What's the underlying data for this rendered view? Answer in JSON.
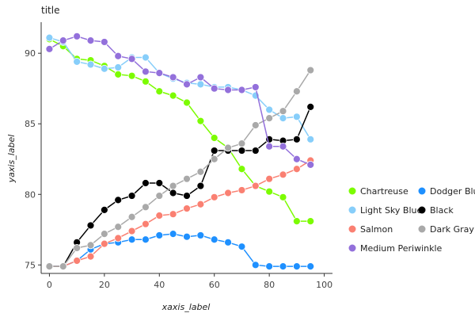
{
  "chart_data": {
    "type": "line",
    "title": "title",
    "xlabel": "xaxis_label",
    "ylabel": "yaxis_label",
    "xlim": [
      -3,
      103
    ],
    "ylim": [
      74.4,
      92.2
    ],
    "xticks": [
      0,
      20,
      40,
      60,
      80,
      100
    ],
    "yticks": [
      75,
      80,
      85,
      90
    ],
    "grid": false,
    "legend_position": "right",
    "series": [
      {
        "name": "Chartreuse",
        "color": "#7cfc00",
        "x": [
          0,
          5,
          10,
          15,
          20,
          25,
          30,
          35,
          40,
          45,
          50,
          55,
          60,
          65,
          70,
          75,
          80,
          85,
          90,
          95
        ],
        "y": [
          91.0,
          90.5,
          89.6,
          89.5,
          89.1,
          88.5,
          88.4,
          88.0,
          87.3,
          87.0,
          86.5,
          85.2,
          84.0,
          83.3,
          81.8,
          80.6,
          80.2,
          79.8,
          78.1,
          78.1
        ]
      },
      {
        "name": "Dodger Blue",
        "color": "#1e90ff",
        "x": [
          0,
          5,
          10,
          15,
          20,
          25,
          30,
          35,
          40,
          45,
          50,
          55,
          60,
          65,
          70,
          75,
          80,
          85,
          90,
          95
        ],
        "y": [
          74.9,
          74.9,
          75.3,
          76.1,
          76.5,
          76.6,
          76.8,
          76.8,
          77.1,
          77.2,
          77.0,
          77.1,
          76.8,
          76.6,
          76.3,
          75.0,
          74.9,
          74.9,
          74.9,
          74.9
        ]
      },
      {
        "name": "Light Sky Blue",
        "color": "#87cefa",
        "x": [
          0,
          5,
          10,
          15,
          20,
          25,
          30,
          35,
          40,
          45,
          50,
          55,
          60,
          65,
          70,
          75,
          80,
          85,
          90,
          95
        ],
        "y": [
          91.1,
          90.8,
          89.4,
          89.2,
          88.9,
          89.0,
          89.7,
          89.7,
          88.6,
          88.2,
          87.9,
          87.8,
          87.6,
          87.6,
          87.4,
          87.0,
          86.0,
          85.4,
          85.5,
          83.9
        ]
      },
      {
        "name": "Black",
        "color": "#000000",
        "x": [
          0,
          5,
          10,
          15,
          20,
          25,
          30,
          35,
          40,
          45,
          50,
          55,
          60,
          65,
          70,
          75,
          80,
          85,
          90,
          95
        ],
        "y": [
          74.9,
          74.9,
          76.6,
          77.8,
          78.9,
          79.6,
          79.9,
          80.8,
          80.8,
          80.1,
          79.9,
          80.6,
          83.1,
          83.1,
          83.1,
          83.1,
          83.9,
          83.8,
          83.9,
          86.2
        ]
      },
      {
        "name": "Salmon",
        "color": "#fa8072",
        "x": [
          0,
          5,
          10,
          15,
          20,
          25,
          30,
          35,
          40,
          45,
          50,
          55,
          60,
          65,
          70,
          75,
          80,
          85,
          90,
          95
        ],
        "y": [
          74.9,
          74.9,
          75.3,
          75.6,
          76.5,
          76.9,
          77.4,
          77.9,
          78.5,
          78.6,
          79.0,
          79.3,
          79.8,
          80.1,
          80.3,
          80.6,
          81.1,
          81.4,
          81.8,
          82.4
        ]
      },
      {
        "name": "Dark Gray",
        "color": "#a9a9a9",
        "x": [
          0,
          5,
          10,
          15,
          20,
          25,
          30,
          35,
          40,
          45,
          50,
          55,
          60,
          65,
          70,
          75,
          80,
          85,
          90,
          95
        ],
        "y": [
          74.9,
          74.9,
          76.2,
          76.4,
          77.2,
          77.7,
          78.4,
          79.1,
          79.9,
          80.6,
          81.1,
          81.6,
          82.5,
          83.3,
          83.6,
          84.9,
          85.4,
          85.9,
          87.3,
          88.8
        ]
      },
      {
        "name": "Medium Periwinkle",
        "color": "#9370db",
        "x": [
          0,
          5,
          10,
          15,
          20,
          25,
          30,
          35,
          40,
          45,
          50,
          55,
          60,
          65,
          70,
          75,
          80,
          85,
          90,
          95
        ],
        "y": [
          90.3,
          90.9,
          91.2,
          90.9,
          90.8,
          89.8,
          89.6,
          88.7,
          88.6,
          88.3,
          87.8,
          88.3,
          87.5,
          87.4,
          87.4,
          87.6,
          83.4,
          83.4,
          82.5,
          82.1
        ]
      }
    ]
  }
}
